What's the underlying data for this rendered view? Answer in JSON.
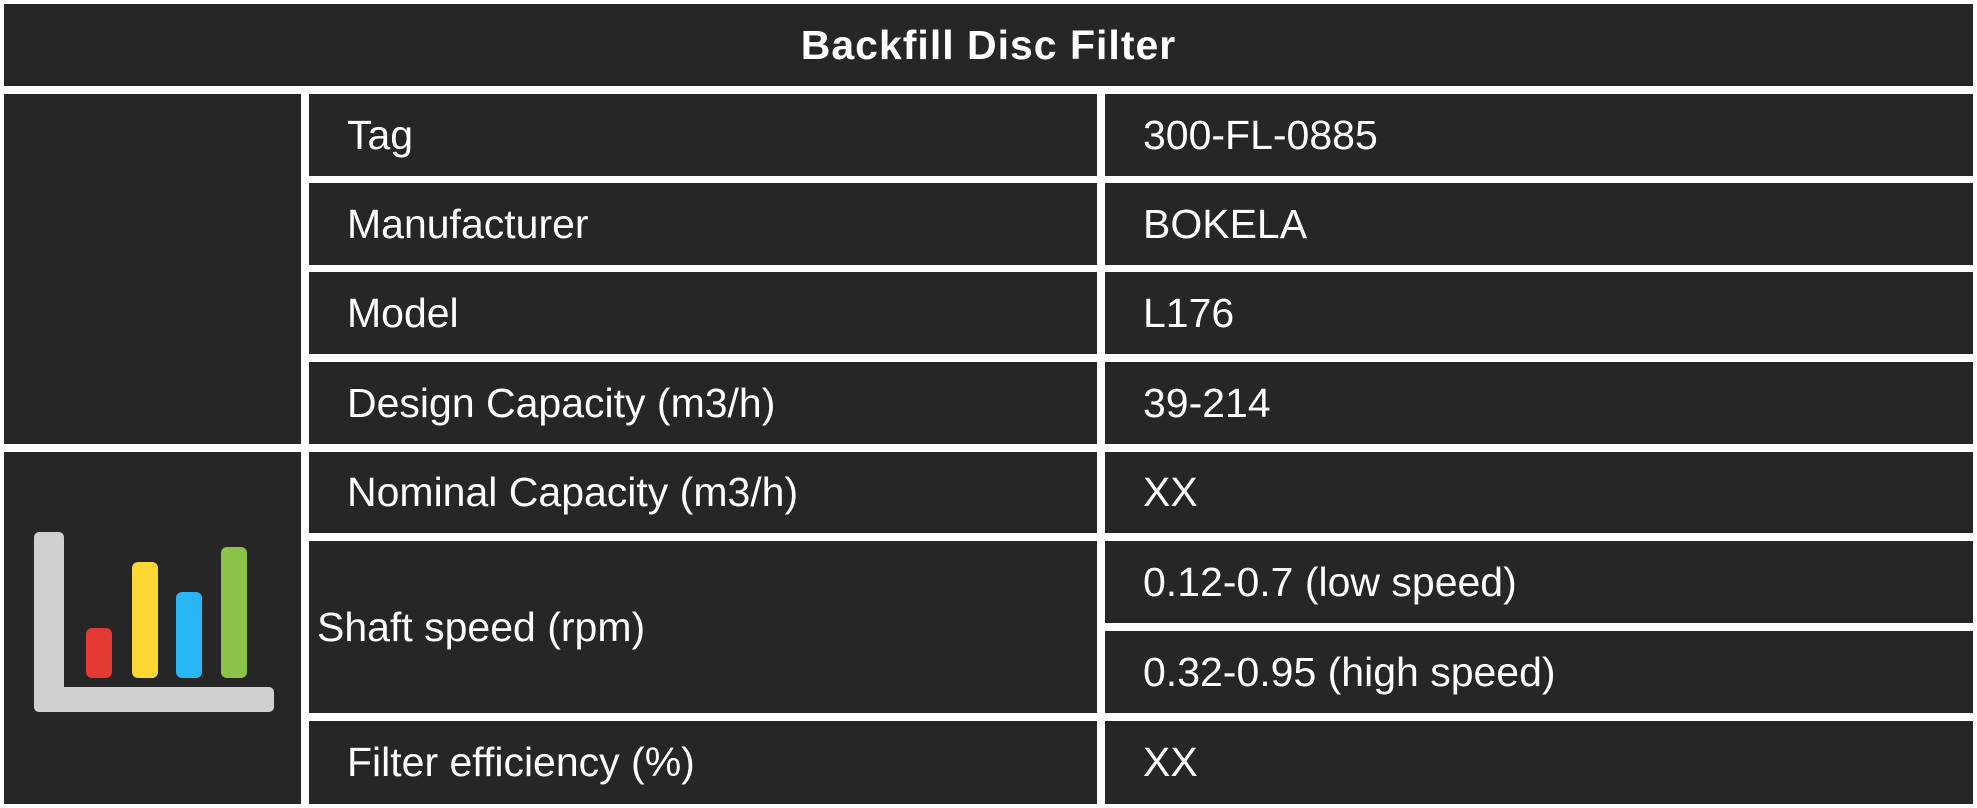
{
  "title": "Backfill Disc Filter",
  "rows": [
    {
      "label": "Tag",
      "value": "300-FL-0885"
    },
    {
      "label": "Manufacturer",
      "value": "BOKELA"
    },
    {
      "label": "Model",
      "value": "L176"
    },
    {
      "label": "Design Capacity (m3/h)",
      "value": "39-214"
    },
    {
      "label": "Nominal Capacity (m3/h)",
      "value": "XX"
    },
    {
      "label": "Shaft speed (rpm)",
      "values": [
        "0.12-0.7 (low speed)",
        "0.32-0.95 (high speed)"
      ]
    },
    {
      "label": "Filter efficiency (%)",
      "value": "XX"
    }
  ],
  "icon": {
    "name": "bar-chart-icon",
    "bar_colors": [
      "#e53935",
      "#fdd835",
      "#29b6f6",
      "#8bc34a"
    ],
    "axis_color": "#d0d0d0"
  }
}
